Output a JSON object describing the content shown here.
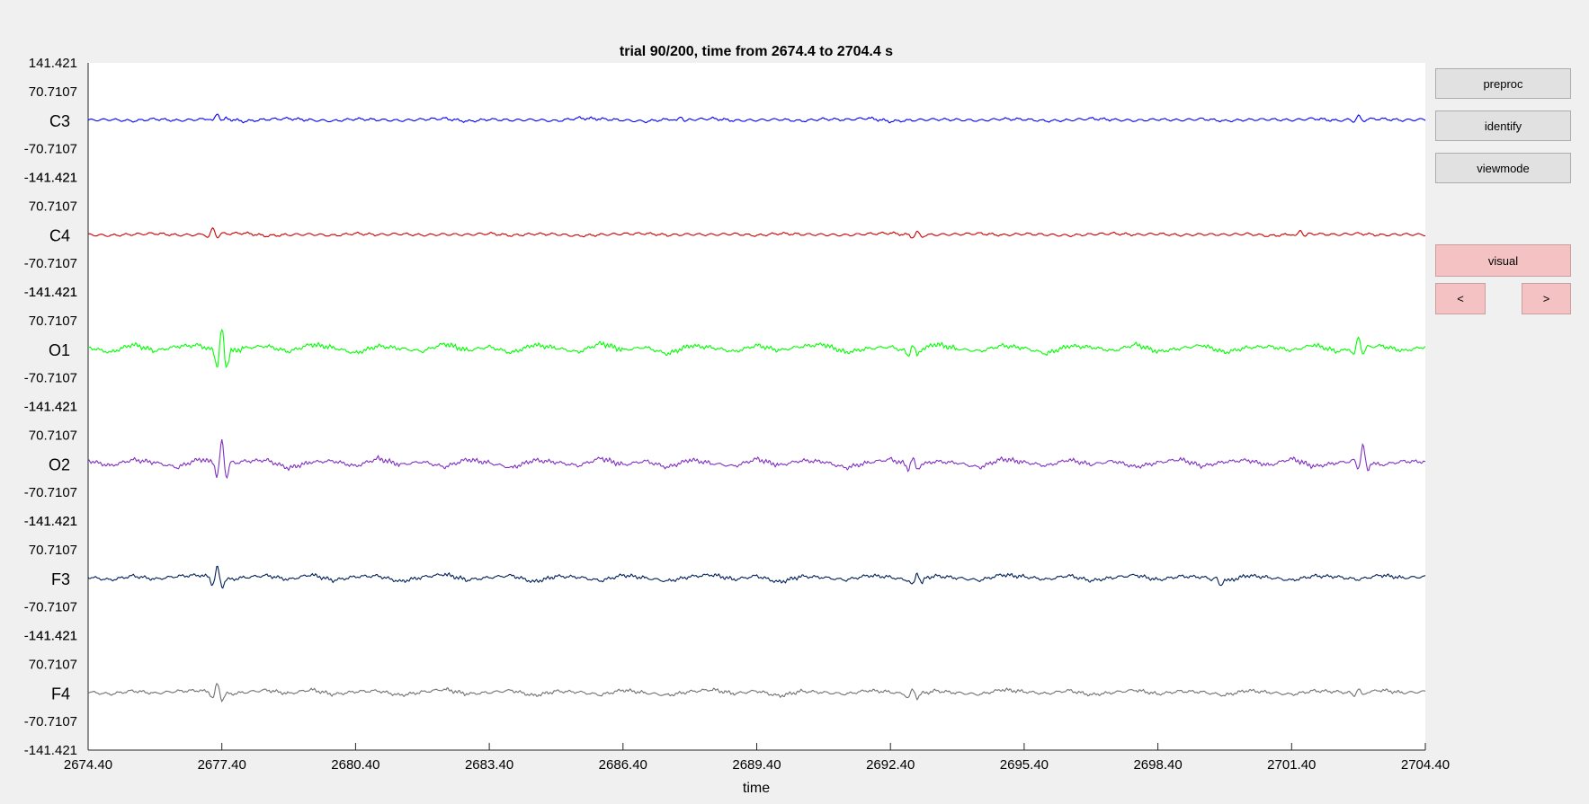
{
  "colors": {
    "C3": "#0000ff",
    "C4": "#cc0000",
    "O1": "#00ff00",
    "O2": "#8030c0",
    "F3": "#00205a",
    "F4": "#707070",
    "button": "#e1e1e1",
    "button_active": "#f4c2c2"
  },
  "buttons": {
    "preproc": "preproc",
    "identify": "identify",
    "viewmode": "viewmode",
    "visual": "visual",
    "prev": "<",
    "next": ">"
  },
  "chart_data": {
    "type": "line",
    "title": "trial 90/200, time from 2674.4 to 2704.4 s",
    "xlabel": "time",
    "xlim": [
      2674.4,
      2704.4
    ],
    "x_ticks": [
      "2674.40",
      "2677.40",
      "2680.40",
      "2683.40",
      "2686.40",
      "2689.40",
      "2692.40",
      "2695.40",
      "2698.40",
      "2701.40",
      "2704.40"
    ],
    "channel_y_ticks": [
      "141.421",
      "70.7107",
      "-70.7107",
      "-141.421"
    ],
    "channel_y_range": [
      -141.421,
      141.421
    ],
    "grid": false,
    "series": [
      {
        "name": "C3",
        "color": "#0000ff",
        "events": [
          {
            "t": 2677.3,
            "amp": 12
          },
          {
            "t": 2687.7,
            "amp": 8
          },
          {
            "t": 2702.9,
            "amp": 8
          }
        ],
        "values": [
          0,
          1.5,
          -2,
          3,
          -1,
          2,
          5,
          -3,
          2,
          4,
          0,
          -2,
          3,
          1,
          -1,
          2,
          4,
          -3,
          2,
          0,
          1,
          -2,
          5,
          3,
          0,
          -3,
          2,
          1,
          4,
          -1,
          0,
          2,
          -2,
          3,
          1,
          5,
          -3,
          0,
          2,
          1,
          -1,
          3,
          2,
          -2,
          0,
          4,
          1,
          -1,
          2,
          0,
          3,
          -2,
          1,
          2,
          0,
          4,
          -1,
          2,
          3,
          0,
          2
        ]
      },
      {
        "name": "C4",
        "color": "#cc0000",
        "events": [
          {
            "t": 2677.2,
            "amp": 14
          },
          {
            "t": 2693.0,
            "amp": 8
          },
          {
            "t": 2701.6,
            "amp": 10
          }
        ],
        "values": [
          0,
          -2,
          1,
          3,
          -1,
          0,
          2,
          4,
          -3,
          0,
          1,
          -2,
          3,
          0,
          2,
          -1,
          1,
          0,
          3,
          -2,
          2,
          1,
          -3,
          0,
          2,
          3,
          -1,
          1,
          0,
          2,
          -2,
          3,
          1,
          0,
          -1,
          2,
          4,
          -2,
          0,
          1,
          3,
          -1,
          2,
          0,
          -2,
          1,
          3,
          0,
          2,
          -1,
          1,
          0,
          2,
          -3,
          1,
          2,
          0,
          3,
          -1,
          1,
          0
        ]
      },
      {
        "name": "O1",
        "color": "#00ff00",
        "events": [
          {
            "t": 2677.4,
            "amp": 65
          },
          {
            "t": 2692.9,
            "amp": 20
          },
          {
            "t": 2702.9,
            "amp": 28
          }
        ],
        "values": [
          5,
          -8,
          12,
          -4,
          7,
          10,
          -15,
          3,
          8,
          -6,
          12,
          4,
          -10,
          8,
          2,
          -5,
          14,
          -3,
          6,
          -9,
          11,
          3,
          -7,
          15,
          -2,
          5,
          -12,
          9,
          4,
          -6,
          10,
          -3,
          7,
          12,
          -8,
          2,
          6,
          -10,
          13,
          1,
          -5,
          9,
          3,
          -11,
          8,
          5,
          -4,
          12,
          -6,
          2,
          10,
          -8,
          4,
          7,
          -3,
          11,
          -5,
          2,
          9,
          -4,
          6
        ]
      },
      {
        "name": "O2",
        "color": "#8030c0",
        "events": [
          {
            "t": 2677.4,
            "amp": 62
          },
          {
            "t": 2692.9,
            "amp": 20
          },
          {
            "t": 2703.0,
            "amp": 40
          }
        ],
        "values": [
          8,
          -5,
          10,
          3,
          -9,
          12,
          -4,
          6,
          9,
          -11,
          4,
          7,
          -6,
          13,
          -2,
          5,
          -8,
          11,
          2,
          -10,
          9,
          4,
          -5,
          14,
          -3,
          7,
          -9,
          10,
          1,
          -6,
          12,
          -4,
          8,
          5,
          -10,
          3,
          11,
          -7,
          6,
          2,
          -9,
          12,
          4,
          -5,
          10,
          -2,
          7,
          -8,
          3,
          11,
          -6,
          5,
          9,
          -4,
          13,
          -7,
          2,
          8,
          -3,
          6,
          5
        ]
      },
      {
        "name": "F3",
        "color": "#00205a",
        "events": [
          {
            "t": 2677.3,
            "amp": 30
          },
          {
            "t": 2693.0,
            "amp": 18
          },
          {
            "t": 2699.8,
            "amp": -12
          }
        ],
        "values": [
          3,
          -4,
          6,
          -2,
          5,
          8,
          -6,
          2,
          7,
          -3,
          9,
          -5,
          4,
          6,
          -8,
          3,
          10,
          -4,
          2,
          7,
          -9,
          5,
          3,
          -6,
          8,
          1,
          -7,
          4,
          9,
          -3,
          6,
          -10,
          5,
          2,
          -4,
          7,
          3,
          -8,
          6,
          1,
          -5,
          9,
          4,
          -3,
          7,
          -6,
          2,
          8,
          -4,
          5,
          3,
          -9,
          7,
          2,
          -5,
          6,
          4,
          -3,
          8,
          1,
          4
        ]
      },
      {
        "name": "F4",
        "color": "#707070",
        "events": [
          {
            "t": 2677.3,
            "amp": 25
          },
          {
            "t": 2692.9,
            "amp": 15
          },
          {
            "t": 2702.9,
            "amp": 12
          }
        ],
        "values": [
          2,
          -3,
          5,
          -1,
          4,
          6,
          -5,
          1,
          7,
          -2,
          8,
          -4,
          3,
          5,
          -6,
          2,
          9,
          -3,
          1,
          6,
          -7,
          4,
          2,
          -5,
          7,
          0,
          -6,
          3,
          8,
          -2,
          5,
          -8,
          4,
          1,
          -3,
          6,
          2,
          -7,
          5,
          0,
          -4,
          8,
          3,
          -2,
          6,
          -5,
          1,
          7,
          -3,
          4,
          2,
          -6,
          6,
          1,
          -4,
          5,
          3,
          -2,
          7,
          0,
          3
        ]
      }
    ]
  }
}
